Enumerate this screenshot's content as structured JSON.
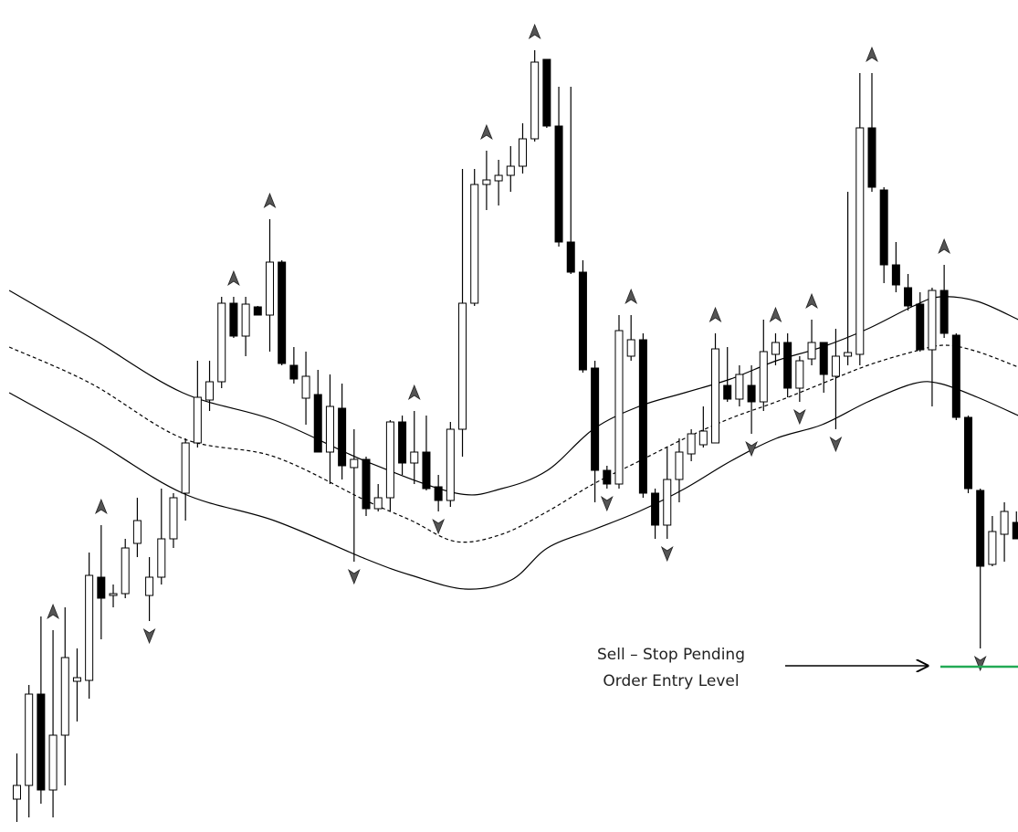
{
  "chart_data": {
    "type": "candlestick",
    "ylim": [
      89,
      1000
    ],
    "open": [
      125,
      140,
      240,
      135,
      195,
      254,
      255,
      368,
      348,
      350,
      405,
      348,
      368,
      410,
      460,
      515,
      562,
      582,
      668,
      632,
      664,
      655,
      713,
      600,
      564,
      568,
      505,
      553,
      488,
      497,
      443,
      455,
      538,
      493,
      505,
      467,
      452,
      530,
      668,
      798,
      802,
      808,
      818,
      848,
      935,
      862,
      735,
      702,
      597,
      485,
      470,
      610,
      628,
      460,
      425,
      475,
      503,
      513,
      515,
      578,
      563,
      578,
      560,
      612,
      625,
      575,
      607,
      625,
      588,
      610,
      612,
      860,
      792,
      710,
      685,
      667,
      617,
      682,
      633,
      543,
      463,
      382,
      415,
      428
    ],
    "high": [
      175,
      250,
      325,
      310,
      335,
      290,
      395,
      425,
      360,
      410,
      455,
      390,
      465,
      460,
      520,
      605,
      605,
      675,
      675,
      675,
      665,
      760,
      715,
      620,
      615,
      595,
      590,
      580,
      530,
      500,
      470,
      540,
      545,
      550,
      545,
      480,
      538,
      815,
      815,
      835,
      825,
      840,
      865,
      945,
      935,
      905,
      905,
      715,
      605,
      490,
      655,
      655,
      635,
      465,
      510,
      520,
      530,
      555,
      635,
      620,
      600,
      600,
      650,
      635,
      635,
      610,
      650,
      625,
      640,
      790,
      920,
      920,
      795,
      735,
      700,
      680,
      685,
      710,
      635,
      545,
      465,
      435,
      450,
      440
    ],
    "low": [
      100,
      105,
      120,
      105,
      140,
      210,
      235,
      300,
      335,
      345,
      390,
      320,
      360,
      400,
      430,
      510,
      550,
      575,
      630,
      610,
      655,
      615,
      600,
      580,
      535,
      505,
      470,
      475,
      385,
      435,
      440,
      440,
      480,
      470,
      463,
      440,
      445,
      500,
      665,
      770,
      775,
      790,
      810,
      845,
      860,
      730,
      700,
      592,
      450,
      465,
      465,
      605,
      455,
      410,
      410,
      450,
      495,
      510,
      515,
      560,
      555,
      525,
      550,
      600,
      565,
      560,
      600,
      570,
      530,
      600,
      600,
      790,
      690,
      680,
      660,
      615,
      555,
      630,
      540,
      460,
      290,
      380,
      385,
      410
    ],
    "close": [
      140,
      240,
      135,
      195,
      280,
      258,
      370,
      345,
      350,
      400,
      430,
      368,
      410,
      455,
      515,
      565,
      582,
      668,
      632,
      667,
      655,
      713,
      602,
      585,
      588,
      505,
      555,
      490,
      497,
      443,
      455,
      538,
      493,
      505,
      465,
      452,
      530,
      668,
      798,
      803,
      808,
      818,
      848,
      932,
      862,
      735,
      702,
      595,
      485,
      470,
      638,
      628,
      460,
      425,
      475,
      505,
      525,
      528,
      618,
      563,
      590,
      560,
      615,
      625,
      575,
      605,
      625,
      590,
      610,
      614,
      860,
      795,
      710,
      688,
      665,
      617,
      682,
      635,
      543,
      465,
      380,
      418,
      440,
      410
    ],
    "up_fractals": [
      3,
      7,
      18,
      21,
      33,
      39,
      43,
      51,
      58,
      63,
      66,
      71,
      77
    ],
    "down_fractals": [
      11,
      28,
      35,
      49,
      54,
      61,
      65,
      68,
      80
    ],
    "series": [
      {
        "color": "#000000",
        "dash": false,
        "x": [
          -0.6,
          6.2,
          13.8,
          21.4,
          29,
          36.5,
          40.3,
          44.1,
          47.9,
          51.7,
          55.5,
          59.3,
          63.1,
          66.9,
          70.7,
          74.5,
          76.7,
          79.8,
          83.2
        ],
        "values": [
          682,
          630,
          570,
          540,
          495,
          460,
          465,
          485,
          530,
          555,
          570,
          585,
          605,
          620,
          640,
          665,
          675,
          670,
          650
        ]
      },
      {
        "color": "#000000",
        "dash": true,
        "x": [
          -0.6,
          6.2,
          13.8,
          21.4,
          29,
          32.8,
          36.5,
          40.3,
          44.1,
          47.9,
          51.7,
          55.5,
          59.3,
          63.1,
          66.9,
          70.7,
          74.5,
          77.1,
          79.8,
          83.2
        ],
        "values": [
          620,
          580,
          520,
          500,
          452,
          430,
          407,
          415,
          440,
          470,
          495,
          520,
          542,
          560,
          580,
          600,
          615,
          622,
          615,
          598
        ]
      },
      {
        "color": "#000000",
        "dash": false,
        "x": [
          -0.6,
          6.2,
          13.8,
          21.4,
          29,
          32.8,
          37.3,
          41.1,
          44.1,
          47.9,
          51.7,
          55.5,
          59.3,
          63.1,
          66.9,
          70.7,
          74.5,
          76.7,
          79.8,
          83.2
        ],
        "values": [
          570,
          520,
          460,
          430,
          388,
          370,
          355,
          365,
          400,
          420,
          440,
          465,
          495,
          520,
          535,
          560,
          580,
          580,
          565,
          545
        ]
      }
    ],
    "annotation": [
      "Sell – Stop Pending",
      "Order Entry Level"
    ],
    "entry_level": 270,
    "entry_color": "#22aa55"
  }
}
